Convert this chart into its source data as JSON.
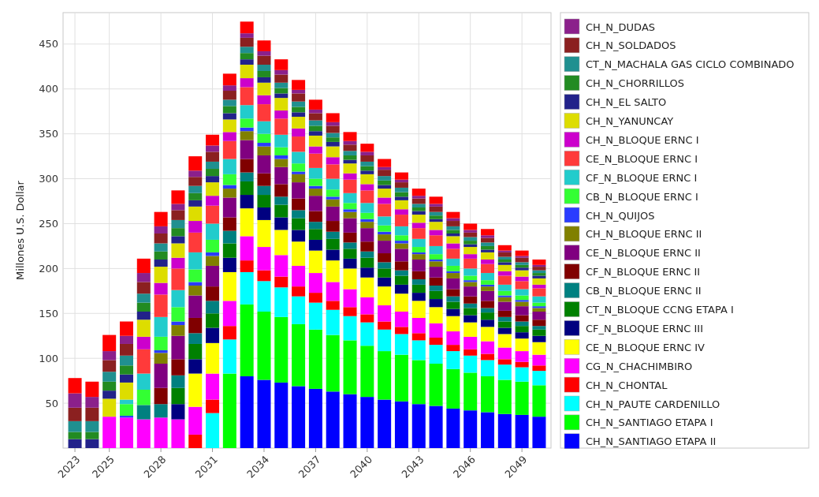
{
  "chart_data": {
    "type": "bar",
    "stacked": true,
    "ylabel": "Millones U.S. Dollar",
    "categories": [
      "2023",
      null,
      "2025",
      null,
      null,
      "2028",
      null,
      null,
      "2031",
      null,
      null,
      "2034",
      null,
      null,
      "2037",
      null,
      null,
      "2040",
      null,
      null,
      "2043",
      null,
      null,
      "2046",
      null,
      null,
      "2049",
      null
    ],
    "ylim": [
      0,
      485
    ],
    "yticks": [
      50,
      100,
      150,
      200,
      250,
      300,
      350,
      400,
      450
    ],
    "grid": true,
    "legend": "right",
    "series": [
      {
        "name": "CH_N_SANTIAGO ETAPA II",
        "color": "#0000ff",
        "values": [
          0,
          0,
          0,
          0,
          0,
          0,
          0,
          0,
          0,
          0,
          80,
          76,
          73,
          69,
          66,
          63,
          60,
          57,
          54,
          52,
          49,
          47,
          44,
          42,
          40,
          38,
          37,
          35
        ]
      },
      {
        "name": "CH_N_SANTIAGO ETAPA I",
        "color": "#00ff00",
        "values": [
          0,
          0,
          0,
          0,
          0,
          0,
          0,
          0,
          0,
          83,
          80,
          76,
          73,
          69,
          66,
          63,
          60,
          57,
          54,
          52,
          49,
          47,
          44,
          42,
          40,
          38,
          37,
          35
        ]
      },
      {
        "name": "CH_N_PAUTE CARDENILLO",
        "color": "#00ffff",
        "values": [
          0,
          0,
          0,
          0,
          0,
          0,
          0,
          0,
          39,
          38,
          36,
          34,
          33,
          31,
          30,
          28,
          27,
          26,
          24,
          23,
          22,
          21,
          20,
          19,
          18,
          17,
          16,
          16
        ]
      },
      {
        "name": "CH_N_CHONTAL",
        "color": "#ff0000",
        "values": [
          0,
          0,
          0,
          0,
          0,
          0,
          0,
          15,
          15,
          15,
          13,
          12,
          12,
          11,
          11,
          10,
          10,
          9,
          9,
          8,
          8,
          8,
          7,
          7,
          7,
          6,
          6,
          6
        ]
      },
      {
        "name": "CG_N_CHACHIMBIRO",
        "color": "#ff00ff",
        "values": [
          0,
          0,
          35,
          34,
          32,
          34,
          32,
          31,
          29,
          28,
          27,
          26,
          24,
          23,
          22,
          21,
          20,
          19,
          18,
          17,
          17,
          16,
          15,
          14,
          14,
          13,
          12,
          12
        ]
      },
      {
        "name": "CE_N_BLOQUE ERNC IV",
        "color": "#ffff00",
        "values": [
          0,
          0,
          0,
          0,
          0,
          0,
          0,
          37,
          34,
          32,
          31,
          30,
          28,
          27,
          25,
          24,
          23,
          22,
          21,
          20,
          19,
          18,
          17,
          16,
          16,
          15,
          14,
          14
        ]
      },
      {
        "name": "CF_N_BLOQUE ERNC III",
        "color": "#000080",
        "values": [
          0,
          0,
          0,
          0,
          0,
          0,
          17,
          16,
          17,
          16,
          15,
          14,
          14,
          13,
          12,
          12,
          11,
          11,
          10,
          10,
          9,
          9,
          8,
          8,
          8,
          7,
          7,
          7
        ]
      },
      {
        "name": "CT_N_BLOQUE CCNG ETAPA I",
        "color": "#008000",
        "values": [
          0,
          0,
          0,
          0,
          0,
          0,
          18,
          17,
          16,
          16,
          15,
          14,
          14,
          13,
          12,
          12,
          11,
          11,
          10,
          10,
          9,
          9,
          8,
          8,
          8,
          7,
          7,
          7
        ]
      },
      {
        "name": "CB_N_BLOQUE ERNC II",
        "color": "#008080",
        "values": [
          0,
          0,
          0,
          0,
          16,
          15,
          14,
          12,
          14,
          14,
          10,
          10,
          9,
          9,
          8,
          8,
          7,
          7,
          7,
          6,
          6,
          6,
          6,
          5,
          5,
          5,
          5,
          4
        ]
      },
      {
        "name": "CF_N_BLOQUE ERNC II",
        "color": "#800000",
        "values": [
          0,
          0,
          0,
          0,
          0,
          18,
          18,
          17,
          16,
          15,
          15,
          14,
          14,
          13,
          12,
          12,
          11,
          11,
          10,
          10,
          9,
          9,
          8,
          8,
          8,
          7,
          7,
          7
        ]
      },
      {
        "name": "CE_N_BLOQUE ERNC II",
        "color": "#800080",
        "values": [
          0,
          0,
          0,
          0,
          0,
          27,
          26,
          25,
          23,
          22,
          21,
          20,
          19,
          18,
          17,
          16,
          16,
          15,
          14,
          14,
          13,
          12,
          12,
          11,
          11,
          10,
          10,
          9
        ]
      },
      {
        "name": "CH_N_BLOQUE ERNC II",
        "color": "#808000",
        "values": [
          0,
          0,
          0,
          0,
          0,
          12,
          12,
          11,
          11,
          10,
          10,
          10,
          9,
          9,
          8,
          8,
          7,
          7,
          7,
          6,
          6,
          6,
          6,
          5,
          5,
          5,
          5,
          4
        ]
      },
      {
        "name": "CH_N_QUIJOS",
        "color": "#2a3cff",
        "values": [
          0,
          0,
          0,
          2,
          0,
          3,
          4,
          4,
          4,
          4,
          4,
          4,
          4,
          3,
          3,
          3,
          3,
          3,
          3,
          3,
          2,
          2,
          2,
          2,
          2,
          2,
          2,
          2
        ]
      },
      {
        "name": "CB_N_BLOQUE ERNC I",
        "color": "#33ff33",
        "values": [
          0,
          0,
          0,
          13,
          17,
          15,
          16,
          14,
          14,
          12,
          10,
          10,
          9,
          9,
          8,
          8,
          7,
          7,
          7,
          6,
          6,
          6,
          6,
          5,
          5,
          5,
          5,
          4
        ]
      },
      {
        "name": "CF_N_BLOQUE ERNC I",
        "color": "#22cccc",
        "values": [
          0,
          0,
          0,
          5,
          18,
          22,
          19,
          19,
          18,
          17,
          15,
          14,
          14,
          13,
          12,
          12,
          11,
          11,
          10,
          10,
          9,
          9,
          8,
          8,
          8,
          7,
          7,
          7
        ]
      },
      {
        "name": "CE_N_BLOQUE ERNC I",
        "color": "#ff3a3a",
        "values": [
          0,
          0,
          0,
          0,
          27,
          25,
          24,
          22,
          20,
          20,
          20,
          19,
          18,
          17,
          16,
          16,
          15,
          14,
          14,
          13,
          12,
          12,
          11,
          11,
          10,
          10,
          9,
          9
        ]
      },
      {
        "name": "CH_N_BLOQUE ERNC I",
        "color": "#cc00cc",
        "values": [
          0,
          0,
          0,
          0,
          14,
          13,
          12,
          13,
          11,
          10,
          10,
          10,
          9,
          9,
          8,
          8,
          7,
          7,
          7,
          6,
          6,
          6,
          6,
          5,
          5,
          5,
          5,
          4
        ]
      },
      {
        "name": "CH_N_YANUNCAY",
        "color": "#dddd00",
        "values": [
          0,
          0,
          20,
          19,
          19,
          18,
          16,
          16,
          15,
          14,
          15,
          14,
          14,
          13,
          12,
          12,
          11,
          11,
          10,
          10,
          9,
          9,
          8,
          8,
          8,
          7,
          7,
          7
        ]
      },
      {
        "name": "CH_N_EL SALTO",
        "color": "#22228a",
        "values": [
          10,
          10,
          9,
          9,
          9,
          8,
          8,
          7,
          7,
          7,
          6,
          6,
          5,
          5,
          5,
          5,
          4,
          4,
          4,
          4,
          4,
          3,
          3,
          3,
          3,
          3,
          3,
          3
        ]
      },
      {
        "name": "CH_N_CHORRILLOS",
        "color": "#228b22",
        "values": [
          8,
          8,
          10,
          10,
          10,
          9,
          9,
          8,
          8,
          8,
          7,
          7,
          6,
          6,
          6,
          5,
          5,
          5,
          5,
          5,
          4,
          4,
          4,
          4,
          4,
          3,
          3,
          3
        ]
      },
      {
        "name": "CT_N_MACHALA GAS CICLO COMBINADO",
        "color": "#209090",
        "values": [
          12,
          12,
          11,
          11,
          10,
          9,
          9,
          8,
          8,
          7,
          7,
          7,
          6,
          6,
          6,
          5,
          5,
          5,
          5,
          5,
          4,
          4,
          4,
          4,
          4,
          3,
          3,
          3
        ]
      },
      {
        "name": "CH_N_SOLDADOS",
        "color": "#8b2020",
        "values": [
          15,
          15,
          13,
          13,
          13,
          11,
          11,
          10,
          11,
          10,
          10,
          10,
          9,
          9,
          8,
          8,
          7,
          7,
          7,
          6,
          6,
          6,
          6,
          5,
          5,
          5,
          5,
          4
        ]
      },
      {
        "name": "CH_N_DUDAS",
        "color": "#8b208b",
        "values": [
          16,
          12,
          10,
          9,
          10,
          8,
          7,
          7,
          7,
          6,
          5,
          5,
          5,
          4,
          4,
          4,
          4,
          4,
          3,
          3,
          3,
          3,
          3,
          3,
          3,
          2,
          2,
          2
        ]
      },
      {
        "color": "#ff0000",
        "values": [
          17,
          17,
          18,
          16,
          16,
          16,
          15,
          16,
          12,
          13,
          13,
          12,
          12,
          11,
          11,
          10,
          10,
          9,
          9,
          8,
          8,
          8,
          7,
          7,
          7,
          6,
          6,
          6
        ]
      }
    ]
  }
}
